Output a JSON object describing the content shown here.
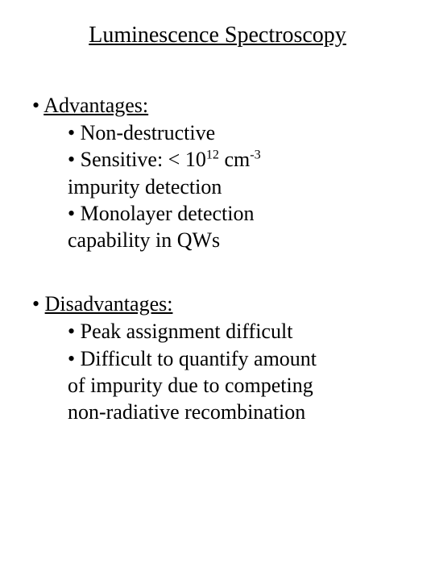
{
  "title": "Luminescence Spectroscopy",
  "sections": [
    {
      "header": "Advantages:",
      "items": [
        {
          "text": "Non-destructive"
        },
        {
          "text_html": "Sensitive: < 10<sup>12</sup> cm<sup>-3</sup>",
          "continuation": "impurity detection"
        },
        {
          "text": "Monolayer detection",
          "continuation": "capability in QWs"
        }
      ]
    },
    {
      "header": "Disadvantages:",
      "items": [
        {
          "text": "Peak assignment difficult"
        },
        {
          "text": "Difficult to quantify amount",
          "continuation": "of impurity due to competing",
          "continuation2": "non-radiative recombination"
        }
      ]
    }
  ],
  "style": {
    "background_color": "#ffffff",
    "text_color": "#000000",
    "font_family": "Times New Roman",
    "title_fontsize": 28,
    "body_fontsize": 26,
    "bullet_char": "•"
  }
}
